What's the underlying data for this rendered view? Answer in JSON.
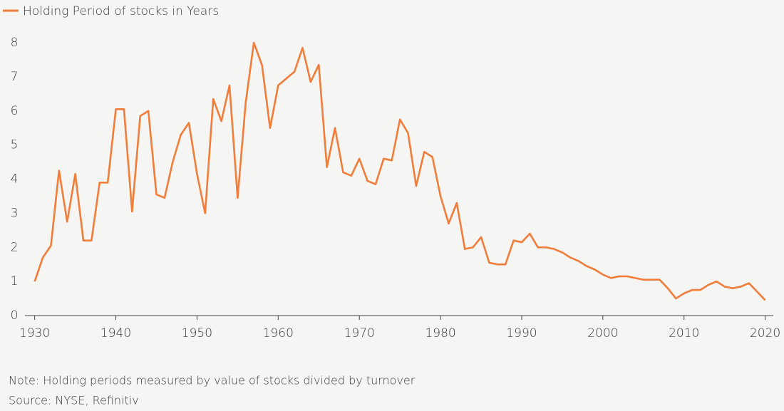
{
  "chart_data": {
    "type": "line",
    "x": [
      1930,
      1931,
      1932,
      1933,
      1934,
      1935,
      1936,
      1937,
      1938,
      1939,
      1940,
      1941,
      1942,
      1943,
      1944,
      1945,
      1946,
      1947,
      1948,
      1949,
      1950,
      1951,
      1952,
      1953,
      1954,
      1955,
      1956,
      1957,
      1958,
      1959,
      1960,
      1961,
      1962,
      1963,
      1964,
      1965,
      1966,
      1967,
      1968,
      1969,
      1970,
      1971,
      1972,
      1973,
      1974,
      1975,
      1976,
      1977,
      1978,
      1979,
      1980,
      1981,
      1982,
      1983,
      1984,
      1985,
      1986,
      1987,
      1988,
      1989,
      1990,
      1991,
      1992,
      1993,
      1994,
      1995,
      1996,
      1997,
      1998,
      1999,
      2000,
      2001,
      2002,
      2003,
      2004,
      2005,
      2006,
      2007,
      2008,
      2009,
      2010,
      2011,
      2012,
      2013,
      2014,
      2015,
      2016,
      2017,
      2018,
      2019,
      2020
    ],
    "series": [
      {
        "name": "Holding Period of stocks in Years",
        "color": "#f07d3a",
        "values": [
          1.0,
          1.7,
          2.05,
          4.25,
          2.75,
          4.15,
          2.2,
          2.2,
          3.9,
          3.9,
          6.05,
          6.05,
          3.05,
          5.85,
          6.0,
          3.55,
          3.45,
          4.5,
          5.3,
          5.65,
          4.15,
          3.0,
          6.35,
          5.7,
          6.75,
          3.45,
          6.25,
          8.0,
          7.35,
          5.5,
          6.75,
          6.95,
          7.15,
          7.85,
          6.85,
          7.35,
          4.35,
          5.5,
          4.2,
          4.1,
          4.6,
          3.95,
          3.85,
          4.6,
          4.55,
          5.75,
          5.35,
          3.8,
          4.8,
          4.65,
          3.5,
          2.7,
          3.3,
          1.95,
          2.0,
          2.3,
          1.55,
          1.5,
          1.5,
          2.2,
          2.15,
          2.4,
          2.0,
          2.0,
          1.95,
          1.85,
          1.7,
          1.6,
          1.45,
          1.35,
          1.2,
          1.1,
          1.15,
          1.15,
          1.1,
          1.05,
          1.05,
          1.05,
          0.8,
          0.5,
          0.65,
          0.75,
          0.75,
          0.9,
          1.0,
          0.85,
          0.8,
          0.85,
          0.95,
          0.7,
          0.45
        ]
      }
    ],
    "xlim": [
      1928.8,
      2021.0
    ],
    "xticks": [
      1930,
      1940,
      1950,
      1960,
      1970,
      1980,
      1990,
      2000,
      2010,
      2020
    ],
    "ylim": [
      0,
      8
    ],
    "yticks": [
      0,
      1,
      2,
      3,
      4,
      5,
      6,
      7,
      8
    ],
    "note": "Note: Holding periods measured by value of stocks divided by turnover",
    "source": "Source: NYSE, Refinitiv"
  }
}
